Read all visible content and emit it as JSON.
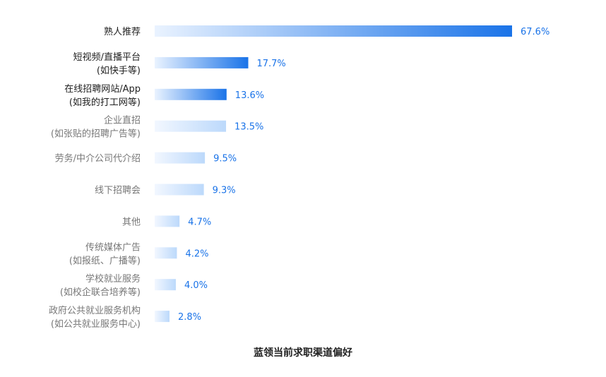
{
  "chart_data": {
    "type": "bar",
    "orientation": "horizontal",
    "title": "蓝领当前求职渠道偏好",
    "xlim": [
      0,
      67.6
    ],
    "categories": [
      {
        "lines": [
          "熟人推荐"
        ],
        "value": 67.6,
        "label": "67.6%",
        "emphasis": true
      },
      {
        "lines": [
          "短视频/直播平台",
          "(如快手等)"
        ],
        "value": 17.7,
        "label": "17.7%",
        "emphasis": true
      },
      {
        "lines": [
          "在线招聘网站/App",
          "(如我的打工网等)"
        ],
        "value": 13.6,
        "label": "13.6%",
        "emphasis": true
      },
      {
        "lines": [
          "企业直招",
          "(如张贴的招聘广告等)"
        ],
        "value": 13.5,
        "label": "13.5%",
        "emphasis": false
      },
      {
        "lines": [
          "劳务/中介公司代介绍"
        ],
        "value": 9.5,
        "label": "9.5%",
        "emphasis": false
      },
      {
        "lines": [
          "线下招聘会"
        ],
        "value": 9.3,
        "label": "9.3%",
        "emphasis": false
      },
      {
        "lines": [
          "其他"
        ],
        "value": 4.7,
        "label": "4.7%",
        "emphasis": false
      },
      {
        "lines": [
          "传统媒体广告",
          "(如报纸、广播等)"
        ],
        "value": 4.2,
        "label": "4.2%",
        "emphasis": false
      },
      {
        "lines": [
          "学校就业服务",
          "(如校企联合培养等)"
        ],
        "value": 4.0,
        "label": "4.0%",
        "emphasis": false
      },
      {
        "lines": [
          "政府公共就业服务机构",
          "(如公共就业服务中心)"
        ],
        "value": 2.8,
        "label": "2.8%",
        "emphasis": false
      }
    ],
    "colors": {
      "bar_strong_start": "#eaf3ff",
      "bar_strong_end": "#1a73e8",
      "bar_light_start": "#f2f7ff",
      "bar_light_end": "#bcd9fb",
      "value_text": "#1a73e8",
      "label_strong": "#222222",
      "label_light": "#777777"
    }
  }
}
